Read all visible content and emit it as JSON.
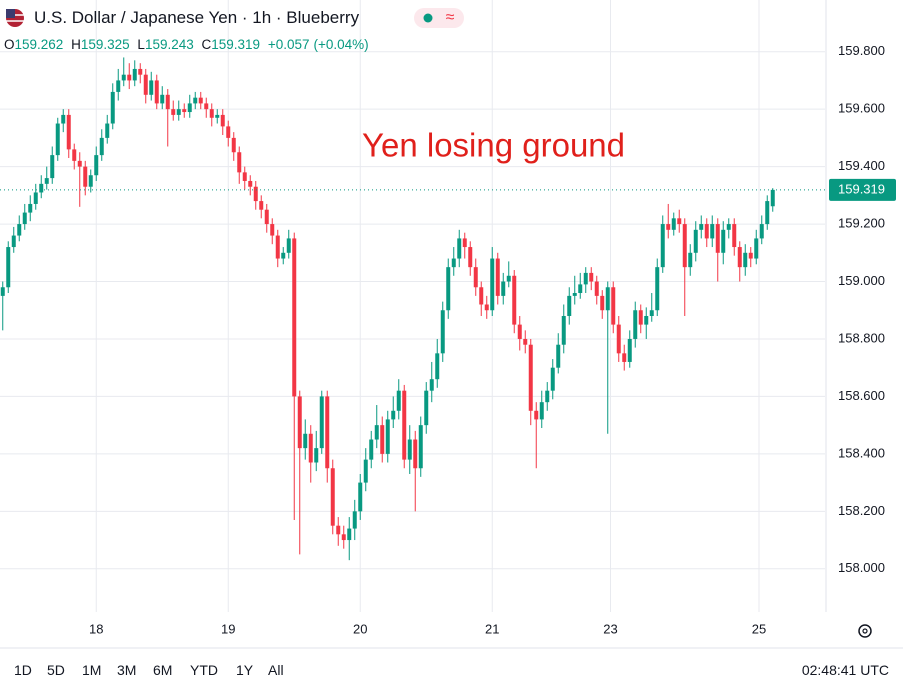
{
  "chart_data": {
    "type": "candlestick",
    "title": "U.S. Dollar / Japanese Yen · 1h · Blueberry",
    "ohlc_labels": [
      "O",
      "H",
      "L",
      "C"
    ],
    "change": "+0.057",
    "change_percent": "(+0.04%)",
    "annotation": "Yen losing ground",
    "up_color": "#089981",
    "down_color": "#f23645",
    "annotation_color": "#e0201b",
    "grid": true,
    "xlim": [
      -0.5,
      149.5
    ],
    "xticks": [
      {
        "value": 17,
        "label": "18"
      },
      {
        "value": 41,
        "label": "19"
      },
      {
        "value": 65,
        "label": "20"
      },
      {
        "value": 89,
        "label": "21"
      },
      {
        "value": 110.5,
        "label": "23"
      },
      {
        "value": 137.5,
        "label": "25"
      }
    ],
    "ylim": [
      157.86,
      159.98
    ],
    "yticks": [
      {
        "value": 158.0,
        "label": "158.000"
      },
      {
        "value": 158.2,
        "label": "158.200"
      },
      {
        "value": 158.4,
        "label": "158.400"
      },
      {
        "value": 158.6,
        "label": "158.600"
      },
      {
        "value": 158.8,
        "label": "158.800"
      },
      {
        "value": 159.0,
        "label": "159.000"
      },
      {
        "value": 159.2,
        "label": "159.200"
      },
      {
        "value": 159.4,
        "label": "159.400"
      },
      {
        "value": 159.6,
        "label": "159.600"
      },
      {
        "value": 159.8,
        "label": "159.800"
      }
    ],
    "open": [
      158.95,
      158.98,
      159.12,
      159.16,
      159.2,
      159.24,
      159.27,
      159.31,
      159.34,
      159.36,
      159.44,
      159.55,
      159.58,
      159.46,
      159.42,
      159.4,
      159.33,
      159.37,
      159.44,
      159.5,
      159.55,
      159.66,
      159.7,
      159.72,
      159.7,
      159.74,
      159.72,
      159.65,
      159.7,
      159.62,
      159.65,
      159.6,
      159.58,
      159.6,
      159.59,
      159.62,
      159.64,
      159.62,
      159.6,
      159.57,
      159.58,
      159.54,
      159.5,
      159.45,
      159.38,
      159.35,
      159.33,
      159.28,
      159.25,
      159.2,
      159.16,
      159.08,
      159.1,
      159.15,
      158.6,
      158.42,
      158.47,
      158.37,
      158.42,
      158.6,
      158.35,
      158.15,
      158.12,
      158.1,
      158.14,
      158.2,
      158.3,
      158.38,
      158.45,
      158.5,
      158.4,
      158.52,
      158.55,
      158.62,
      158.38,
      158.45,
      158.35,
      158.5,
      158.62,
      158.66,
      158.75,
      158.9,
      159.05,
      159.08,
      159.15,
      159.12,
      159.05,
      158.98,
      158.92,
      158.9,
      159.08,
      158.95,
      159.0,
      159.02,
      158.85,
      158.8,
      158.78,
      158.55,
      158.52,
      158.58,
      158.62,
      158.7,
      158.78,
      158.88,
      158.95,
      158.96,
      158.99,
      159.03,
      159.0,
      158.95,
      158.9,
      158.98,
      158.85,
      158.75,
      158.72,
      158.8,
      158.9,
      158.85,
      158.88,
      158.9,
      159.05,
      159.2,
      159.18,
      159.22,
      159.2,
      159.05,
      159.1,
      159.18,
      159.2,
      159.15,
      159.2,
      159.1,
      159.18,
      159.2,
      159.12,
      159.05,
      159.1,
      159.08,
      159.15,
      159.2,
      159.262
    ],
    "high": [
      159.0,
      159.14,
      159.19,
      159.23,
      159.27,
      159.3,
      159.34,
      159.37,
      159.4,
      159.47,
      159.57,
      159.6,
      159.6,
      159.48,
      159.45,
      159.42,
      159.39,
      159.47,
      159.53,
      159.58,
      159.69,
      159.74,
      159.78,
      159.76,
      159.77,
      159.76,
      159.74,
      159.73,
      159.72,
      159.68,
      159.67,
      159.63,
      159.63,
      159.62,
      159.65,
      159.66,
      159.66,
      159.64,
      159.62,
      159.6,
      159.6,
      159.56,
      159.52,
      159.47,
      159.4,
      159.37,
      159.35,
      159.3,
      159.27,
      159.22,
      159.18,
      159.12,
      159.18,
      159.17,
      158.62,
      158.52,
      158.5,
      158.48,
      158.62,
      158.62,
      158.38,
      158.18,
      158.15,
      158.18,
      158.24,
      158.33,
      158.42,
      158.48,
      158.57,
      158.53,
      158.55,
      158.6,
      158.66,
      158.64,
      158.5,
      158.48,
      158.53,
      158.65,
      158.72,
      158.8,
      158.93,
      159.08,
      159.12,
      159.18,
      159.17,
      159.14,
      159.08,
      159.0,
      158.95,
      159.12,
      159.1,
      159.03,
      159.07,
      159.04,
      158.88,
      158.83,
      158.8,
      158.58,
      158.62,
      158.65,
      158.73,
      158.82,
      158.92,
      158.98,
      159.02,
      159.03,
      159.05,
      159.05,
      159.02,
      158.97,
      159.0,
      159.0,
      158.88,
      158.78,
      158.83,
      158.93,
      158.92,
      158.91,
      158.96,
      159.08,
      159.23,
      159.27,
      159.24,
      159.25,
      159.22,
      159.13,
      159.21,
      159.23,
      159.22,
      159.23,
      159.22,
      159.21,
      159.22,
      159.22,
      159.14,
      159.13,
      159.12,
      159.18,
      159.23,
      159.3,
      159.325
    ],
    "low": [
      158.83,
      158.96,
      159.1,
      159.14,
      159.18,
      159.21,
      159.25,
      159.29,
      159.32,
      159.34,
      159.42,
      159.52,
      159.43,
      159.39,
      159.26,
      159.3,
      159.31,
      159.35,
      159.42,
      159.48,
      159.53,
      159.63,
      159.68,
      159.67,
      159.68,
      159.69,
      159.62,
      159.63,
      159.6,
      159.6,
      159.47,
      159.56,
      159.56,
      159.57,
      159.57,
      159.6,
      159.6,
      159.57,
      159.54,
      159.55,
      159.51,
      159.47,
      159.42,
      159.34,
      159.32,
      159.3,
      159.25,
      159.22,
      159.17,
      159.13,
      159.05,
      159.06,
      159.08,
      158.17,
      158.05,
      158.38,
      158.3,
      158.34,
      158.4,
      158.3,
      158.12,
      158.08,
      158.07,
      158.03,
      158.1,
      158.17,
      158.27,
      158.35,
      158.42,
      158.37,
      158.37,
      158.49,
      158.52,
      158.35,
      158.33,
      158.2,
      158.32,
      158.47,
      158.58,
      158.63,
      158.72,
      158.87,
      159.02,
      159.05,
      159.08,
      159.02,
      158.95,
      158.88,
      158.87,
      158.88,
      158.92,
      158.92,
      158.98,
      158.82,
      158.76,
      158.75,
      158.5,
      158.35,
      158.49,
      158.55,
      158.59,
      158.68,
      158.75,
      158.85,
      158.92,
      158.94,
      158.96,
      158.97,
      158.92,
      158.87,
      158.47,
      158.82,
      158.72,
      158.69,
      158.7,
      158.77,
      158.82,
      158.8,
      158.86,
      158.88,
      159.03,
      159.15,
      159.16,
      159.17,
      158.88,
      159.02,
      159.07,
      159.15,
      159.12,
      159.12,
      159.0,
      159.06,
      159.15,
      159.09,
      159.0,
      159.02,
      159.05,
      159.06,
      159.13,
      159.18,
      159.243
    ],
    "close": [
      158.98,
      159.12,
      159.16,
      159.2,
      159.24,
      159.27,
      159.31,
      159.34,
      159.36,
      159.44,
      159.55,
      159.58,
      159.46,
      159.42,
      159.4,
      159.33,
      159.37,
      159.44,
      159.5,
      159.55,
      159.66,
      159.7,
      159.72,
      159.7,
      159.74,
      159.72,
      159.65,
      159.7,
      159.62,
      159.65,
      159.6,
      159.58,
      159.6,
      159.59,
      159.62,
      159.64,
      159.62,
      159.6,
      159.57,
      159.58,
      159.54,
      159.5,
      159.45,
      159.38,
      159.35,
      159.33,
      159.28,
      159.25,
      159.2,
      159.16,
      159.08,
      159.1,
      159.15,
      158.6,
      158.42,
      158.47,
      158.37,
      158.42,
      158.6,
      158.35,
      158.15,
      158.12,
      158.1,
      158.14,
      158.2,
      158.3,
      158.38,
      158.45,
      158.5,
      158.4,
      158.52,
      158.55,
      158.62,
      158.38,
      158.45,
      158.35,
      158.5,
      158.62,
      158.66,
      158.75,
      158.9,
      159.05,
      159.08,
      159.15,
      159.12,
      159.05,
      158.98,
      158.92,
      158.9,
      159.08,
      158.95,
      159.0,
      159.02,
      158.85,
      158.8,
      158.78,
      158.55,
      158.52,
      158.58,
      158.62,
      158.7,
      158.78,
      158.88,
      158.95,
      158.96,
      158.99,
      159.03,
      159.0,
      158.95,
      158.9,
      158.98,
      158.85,
      158.75,
      158.72,
      158.8,
      158.9,
      158.85,
      158.88,
      158.9,
      159.05,
      159.2,
      159.18,
      159.22,
      159.2,
      159.05,
      159.1,
      159.18,
      159.2,
      159.15,
      159.2,
      159.1,
      159.18,
      159.2,
      159.12,
      159.05,
      159.1,
      159.08,
      159.15,
      159.2,
      159.28,
      159.319
    ]
  },
  "toolbar": {
    "ranges": [
      "1D",
      "5D",
      "1M",
      "3M",
      "6M",
      "YTD",
      "1Y",
      "All"
    ],
    "clock": "02:48:41 UTC"
  }
}
